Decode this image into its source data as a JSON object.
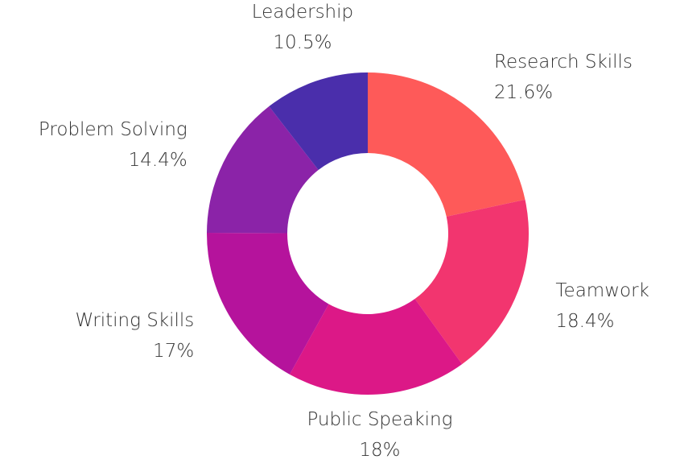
{
  "chart_data": {
    "type": "donut",
    "categories": [
      "Research Skills",
      "Teamwork",
      "Public Speaking",
      "Writing Skills",
      "Problem Solving",
      "Leadership"
    ],
    "values": [
      21.6,
      18.4,
      18,
      17,
      14.4,
      10.5
    ],
    "value_labels": [
      "21.6%",
      "18.4%",
      "18%",
      "17%",
      "14.4%",
      "10.5%"
    ],
    "colors": [
      "#fe5a59",
      "#f2356f",
      "#dc1887",
      "#b5139c",
      "#8b23a8",
      "#4a2eab"
    ]
  }
}
